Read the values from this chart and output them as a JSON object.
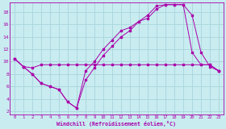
{
  "xlabel": "Windchill (Refroidissement éolien,°C)",
  "bg_color": "#c8ecf0",
  "grid_color": "#aad4dc",
  "line_color": "#aa00aa",
  "xlim": [
    -0.5,
    23.5
  ],
  "ylim": [
    1.5,
    19.5
  ],
  "xticks": [
    0,
    1,
    2,
    3,
    4,
    5,
    6,
    7,
    8,
    9,
    10,
    11,
    12,
    13,
    14,
    15,
    16,
    17,
    18,
    19,
    20,
    21,
    22,
    23
  ],
  "yticks": [
    2,
    4,
    6,
    8,
    10,
    12,
    14,
    16,
    18
  ],
  "line1_x": [
    0,
    1,
    2,
    3,
    4,
    5,
    6,
    7,
    8,
    9,
    10,
    11,
    12,
    13,
    14,
    15,
    16,
    17,
    18,
    19,
    20,
    21,
    22,
    23
  ],
  "line1_y": [
    10.5,
    9.2,
    9.0,
    9.5,
    9.5,
    9.5,
    9.5,
    9.5,
    9.5,
    9.5,
    9.5,
    9.5,
    9.5,
    9.5,
    9.5,
    9.5,
    9.5,
    9.5,
    9.5,
    9.5,
    9.5,
    9.5,
    9.5,
    8.5
  ],
  "line2_x": [
    0,
    1,
    2,
    3,
    4,
    5,
    6,
    7,
    8,
    9,
    10,
    11,
    12,
    13,
    14,
    15,
    16,
    17,
    18,
    19,
    20,
    21,
    22,
    23
  ],
  "line2_y": [
    10.5,
    9.2,
    8.0,
    6.5,
    6.0,
    5.5,
    3.5,
    2.5,
    8.5,
    10.0,
    12.0,
    13.5,
    15.0,
    15.5,
    16.5,
    17.5,
    19.0,
    19.2,
    19.2,
    19.2,
    11.5,
    9.5,
    9.5,
    8.5
  ],
  "line3_x": [
    0,
    1,
    2,
    3,
    4,
    5,
    6,
    7,
    8,
    9,
    10,
    11,
    12,
    13,
    14,
    15,
    16,
    17,
    18,
    19,
    20,
    21,
    22,
    23
  ],
  "line3_y": [
    10.5,
    9.2,
    8.0,
    6.5,
    6.0,
    5.5,
    3.5,
    2.5,
    7.0,
    9.0,
    11.0,
    12.5,
    14.0,
    15.0,
    16.5,
    17.0,
    18.5,
    19.2,
    19.2,
    19.2,
    17.5,
    11.5,
    9.2,
    8.5
  ]
}
